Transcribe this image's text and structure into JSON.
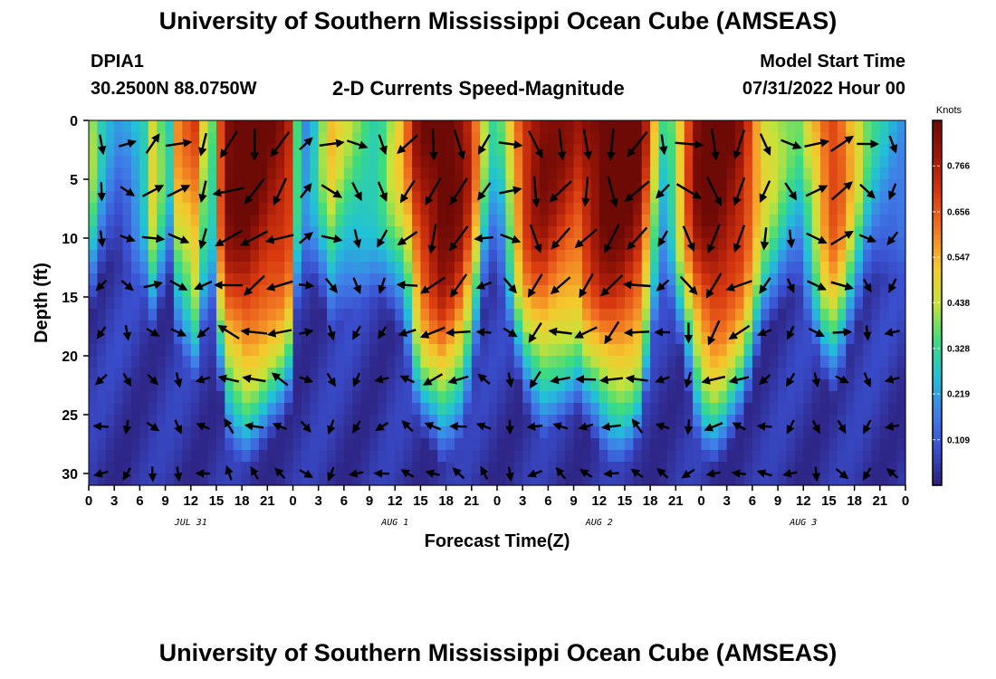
{
  "header": {
    "title": "University of Southern Mississippi Ocean Cube (AMSEAS)",
    "station": "DPIA1",
    "location": "30.2500N  88.0750W",
    "subtitle": "2-D Currents Speed-Magnitude",
    "start_label": "Model Start Time",
    "start_value": "07/31/2022 Hour 00"
  },
  "footer": {
    "title": "University of Southern Mississippi Ocean Cube (AMSEAS)"
  },
  "colors": {
    "colormap": [
      "#2c1e7a",
      "#3a4fcf",
      "#3f7fe8",
      "#21c1d8",
      "#3edc7c",
      "#c8e23a",
      "#f5c92e",
      "#f27a22",
      "#d93a10",
      "#a01808",
      "#6e0a06"
    ],
    "arrow": "#000000",
    "background": "#ffffff"
  },
  "chart_data": {
    "type": "heatmap",
    "title": "2-D Currents Speed-Magnitude",
    "xlabel": "Forecast Time(Z)",
    "ylabel": "Depth (ft)",
    "colorbar_label": "Knots",
    "colorbar_ticks": [
      "0.766",
      "0.656",
      "0.547",
      "0.438",
      "0.328",
      "0.219",
      "0.109"
    ],
    "colorbar_range": [
      0.0,
      0.875
    ],
    "x_tick_labels": [
      "0",
      "3",
      "6",
      "9",
      "12",
      "15",
      "18",
      "21",
      "0",
      "3",
      "6",
      "9",
      "12",
      "15",
      "18",
      "21",
      "0",
      "3",
      "6",
      "9",
      "12",
      "15",
      "18",
      "21",
      "0",
      "3",
      "6",
      "9",
      "12",
      "15",
      "18",
      "21",
      "0"
    ],
    "date_labels": [
      {
        "label": "JUL 31",
        "hour": 12
      },
      {
        "label": "AUG 1",
        "hour": 36
      },
      {
        "label": "AUG 2",
        "hour": 60
      },
      {
        "label": "AUG 3",
        "hour": 84
      }
    ],
    "xlim": [
      0,
      96
    ],
    "y_ticks": [
      0,
      5,
      10,
      15,
      20,
      25,
      30
    ],
    "ylim": [
      0,
      31
    ],
    "y_inverted": true,
    "grid": false,
    "max_speed": 0.8,
    "approx_surface_speed_hourly": [
      0.3,
      0.18,
      0.12,
      0.1,
      0.14,
      0.2,
      0.25,
      0.4,
      0.3,
      0.2,
      0.45,
      0.5,
      0.55,
      0.38,
      0.3,
      0.6,
      0.75,
      0.78,
      0.8,
      0.78,
      0.75,
      0.72,
      0.7,
      0.65,
      0.3,
      0.15,
      0.2,
      0.3,
      0.4,
      0.35,
      0.32,
      0.3,
      0.28,
      0.26,
      0.28,
      0.34,
      0.4,
      0.5,
      0.65,
      0.72,
      0.76,
      0.8,
      0.78,
      0.74,
      0.65,
      0.5,
      0.3,
      0.2,
      0.25,
      0.4,
      0.55,
      0.65,
      0.7,
      0.72,
      0.7,
      0.68,
      0.66,
      0.64,
      0.7,
      0.74,
      0.78,
      0.8,
      0.8,
      0.78,
      0.74,
      0.6,
      0.4,
      0.25,
      0.3,
      0.45,
      0.6,
      0.72,
      0.78,
      0.8,
      0.78,
      0.74,
      0.7,
      0.62,
      0.5,
      0.4,
      0.35,
      0.3,
      0.26,
      0.25,
      0.35,
      0.45,
      0.55,
      0.6,
      0.55,
      0.45,
      0.35,
      0.25,
      0.2,
      0.18,
      0.16,
      0.15
    ],
    "approx_surface_direction_deg_hourly": [
      160,
      150,
      130,
      100,
      80,
      60,
      50,
      40,
      30,
      20,
      60,
      110,
      150,
      170,
      180,
      200,
      215,
      210,
      200,
      190,
      185,
      190,
      200,
      210,
      10,
      20,
      40,
      60,
      80,
      100,
      110,
      120,
      130,
      140,
      150,
      170,
      190,
      200,
      190,
      180,
      170,
      160,
      165,
      175,
      185,
      195,
      205,
      10,
      30,
      70,
      100,
      120,
      140,
      160,
      175,
      185,
      190,
      180,
      170,
      160,
      150,
      160,
      175,
      190,
      200,
      205,
      200,
      180,
      150,
      120,
      100,
      110,
      130,
      150,
      170,
      180,
      175,
      170,
      165,
      160,
      150,
      140,
      120,
      100,
      80,
      60,
      50,
      40,
      30,
      40,
      60,
      90,
      120,
      150,
      170,
      180
    ]
  }
}
